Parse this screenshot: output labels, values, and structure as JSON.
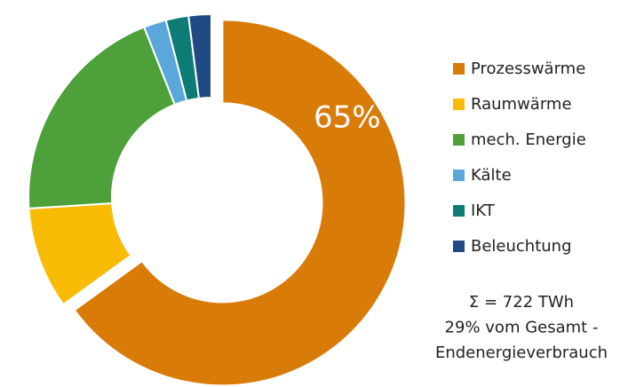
{
  "chart_data": {
    "type": "donut",
    "categories": [
      "Prozesswärme",
      "Raumwärme",
      "mech. Energie",
      "Kälte",
      "IKT",
      "Beleuchtung"
    ],
    "values": [
      65,
      9,
      20,
      2,
      2,
      2
    ],
    "value_labels": [
      "65%",
      null,
      null,
      null,
      null,
      null
    ],
    "colors": [
      "#d97b09",
      "#f8bc07",
      "#4ea03a",
      "#5aa7dc",
      "#0c7c74",
      "#1f4a84"
    ],
    "annotations": [
      "Σ = 722  TWh",
      "29% vom Gesamt -",
      "Endenergieverbrauch"
    ]
  }
}
